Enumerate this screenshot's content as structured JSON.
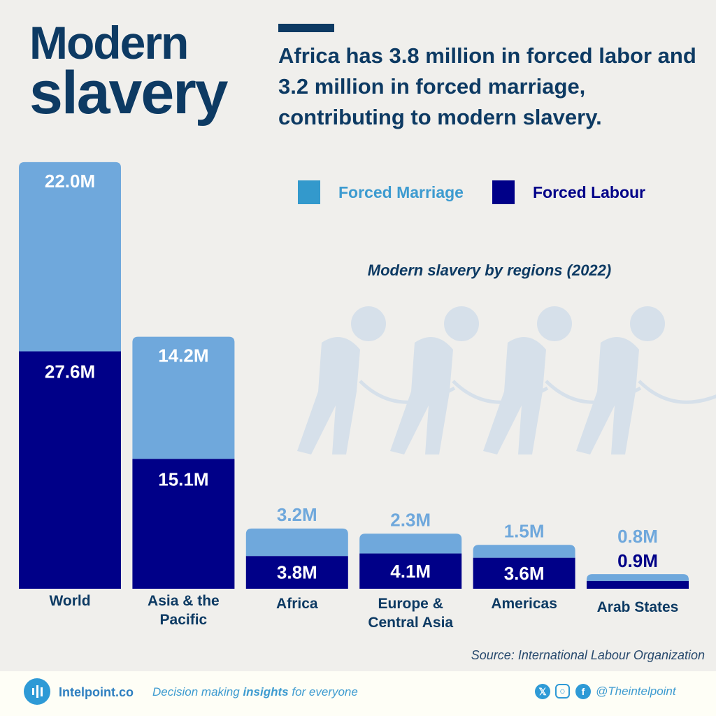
{
  "title": {
    "line1": "Modern",
    "line2": "slavery"
  },
  "headline": "Africa has 3.8 million in forced labor and 3.2 million in forced marriage, contributing to modern slavery.",
  "colors": {
    "marriage": "#6fa8dc",
    "labour": "#000088",
    "legend_marriage": "#3399cc",
    "text": "#0d3a63"
  },
  "chart_data": {
    "type": "bar",
    "stacked": true,
    "title": "Modern slavery by regions (2022)",
    "categories": [
      "World",
      "Asia & the Pacific",
      "Africa",
      "Europe & Central Asia",
      "Americas",
      "Arab States"
    ],
    "series": [
      {
        "name": "Forced Labour",
        "values": [
          27.6,
          15.1,
          3.8,
          4.1,
          3.6,
          0.9
        ],
        "labels": [
          "27.6M",
          "15.1M",
          "3.8M",
          "4.1M",
          "3.6M",
          "0.9M"
        ]
      },
      {
        "name": "Forced Marriage",
        "values": [
          22.0,
          14.2,
          3.2,
          2.3,
          1.5,
          0.8
        ],
        "labels": [
          "22.0M",
          "14.2M",
          "3.2M",
          "2.3M",
          "1.5M",
          "0.8M"
        ]
      }
    ],
    "unit": "million",
    "legend": "top-right",
    "grid": false
  },
  "legend": {
    "marriage": "Forced Marriage",
    "labour": "Forced Labour"
  },
  "source": "Source: International Labour Organization",
  "footer": {
    "brand": "Intelpoint.co",
    "tagline_pre": "Decision making ",
    "tagline_bold": "insights",
    "tagline_post": " for everyone",
    "social_icons": [
      "x-icon",
      "instagram-icon",
      "facebook-icon"
    ],
    "handle": "@Theintelpoint"
  }
}
